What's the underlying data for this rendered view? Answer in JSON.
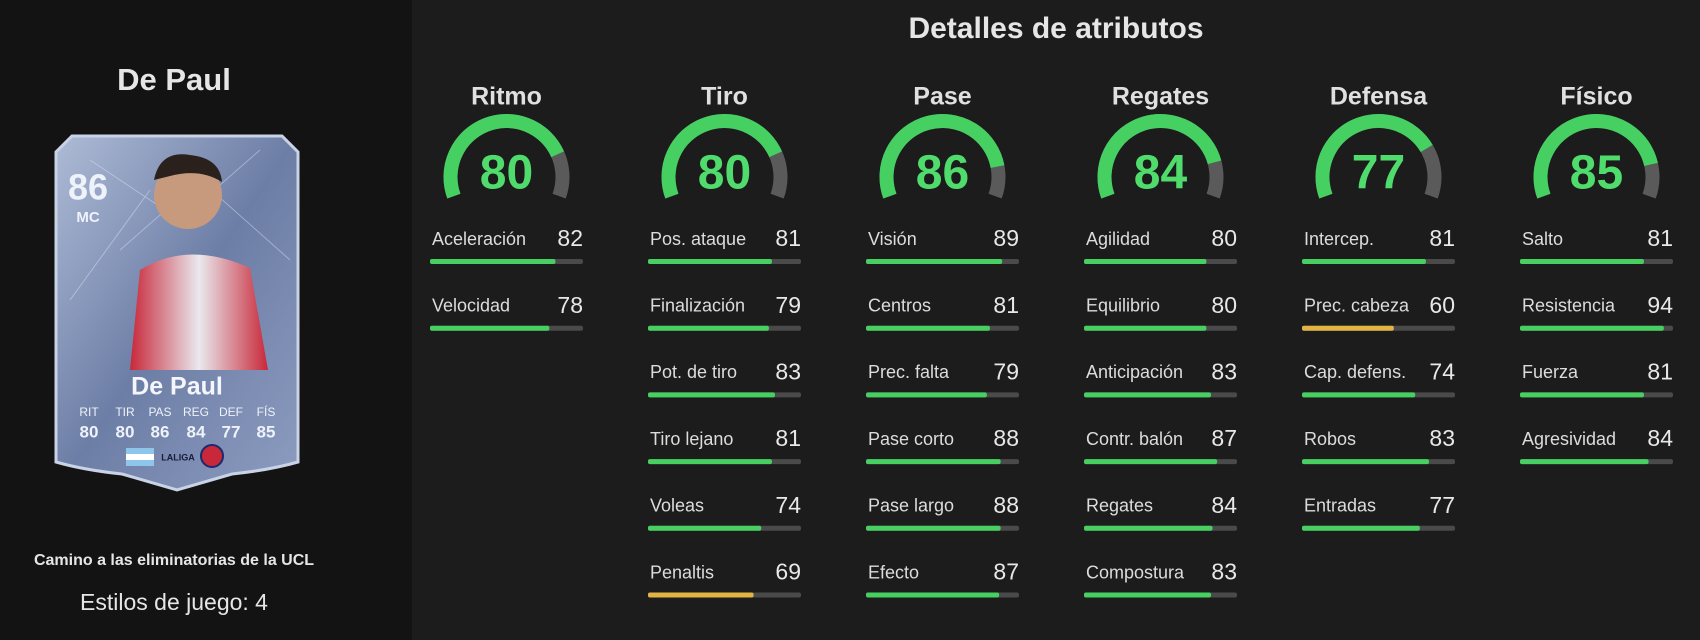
{
  "player": {
    "name": "De Paul"
  },
  "card": {
    "rating": 86,
    "position": "MC",
    "name": "De Paul",
    "stats": [
      {
        "label": "RIT",
        "value": 80
      },
      {
        "label": "TIR",
        "value": 80
      },
      {
        "label": "PAS",
        "value": 86
      },
      {
        "label": "REG",
        "value": 84
      },
      {
        "label": "DEF",
        "value": 77
      },
      {
        "label": "FÍS",
        "value": 85
      }
    ]
  },
  "promo": "Camino a las eliminatorias de la UCL",
  "playstyles": "Estilos de juego: 4",
  "title": "Detalles de atributos",
  "range": [
    0,
    100
  ],
  "categories": [
    {
      "name": "Ritmo",
      "value": 80,
      "attributes": [
        {
          "name": "Aceleración",
          "value": 82,
          "color": "#47cf62"
        },
        {
          "name": "Velocidad",
          "value": 78,
          "color": "#47cf62"
        }
      ]
    },
    {
      "name": "Tiro",
      "value": 80,
      "attributes": [
        {
          "name": "Pos. ataque",
          "value": 81,
          "color": "#47cf62"
        },
        {
          "name": "Finalización",
          "value": 79,
          "color": "#47cf62"
        },
        {
          "name": "Pot. de tiro",
          "value": 83,
          "color": "#47cf62"
        },
        {
          "name": "Tiro lejano",
          "value": 81,
          "color": "#47cf62"
        },
        {
          "name": "Voleas",
          "value": 74,
          "color": "#47cf62"
        },
        {
          "name": "Penaltis",
          "value": 69,
          "color": "#e2b445"
        }
      ]
    },
    {
      "name": "Pase",
      "value": 86,
      "attributes": [
        {
          "name": "Visión",
          "value": 89,
          "color": "#47cf62"
        },
        {
          "name": "Centros",
          "value": 81,
          "color": "#47cf62"
        },
        {
          "name": "Prec. falta",
          "value": 79,
          "color": "#47cf62"
        },
        {
          "name": "Pase corto",
          "value": 88,
          "color": "#47cf62"
        },
        {
          "name": "Pase largo",
          "value": 88,
          "color": "#47cf62"
        },
        {
          "name": "Efecto",
          "value": 87,
          "color": "#47cf62"
        }
      ]
    },
    {
      "name": "Regates",
      "value": 84,
      "attributes": [
        {
          "name": "Agilidad",
          "value": 80,
          "color": "#47cf62"
        },
        {
          "name": "Equilibrio",
          "value": 80,
          "color": "#47cf62"
        },
        {
          "name": "Anticipación",
          "value": 83,
          "color": "#47cf62"
        },
        {
          "name": "Contr. balón",
          "value": 87,
          "color": "#47cf62"
        },
        {
          "name": "Regates",
          "value": 84,
          "color": "#47cf62"
        },
        {
          "name": "Compostura",
          "value": 83,
          "color": "#47cf62"
        }
      ]
    },
    {
      "name": "Defensa",
      "value": 77,
      "attributes": [
        {
          "name": "Intercep.",
          "value": 81,
          "color": "#47cf62"
        },
        {
          "name": "Prec. cabeza",
          "value": 60,
          "color": "#e2b445"
        },
        {
          "name": "Cap. defens.",
          "value": 74,
          "color": "#47cf62"
        },
        {
          "name": "Robos",
          "value": 83,
          "color": "#47cf62"
        },
        {
          "name": "Entradas",
          "value": 77,
          "color": "#47cf62"
        }
      ]
    },
    {
      "name": "Físico",
      "value": 85,
      "attributes": [
        {
          "name": "Salto",
          "value": 81,
          "color": "#47cf62"
        },
        {
          "name": "Resistencia",
          "value": 94,
          "color": "#47cf62"
        },
        {
          "name": "Fuerza",
          "value": 81,
          "color": "#47cf62"
        },
        {
          "name": "Agresividad",
          "value": 84,
          "color": "#47cf62"
        }
      ]
    }
  ]
}
